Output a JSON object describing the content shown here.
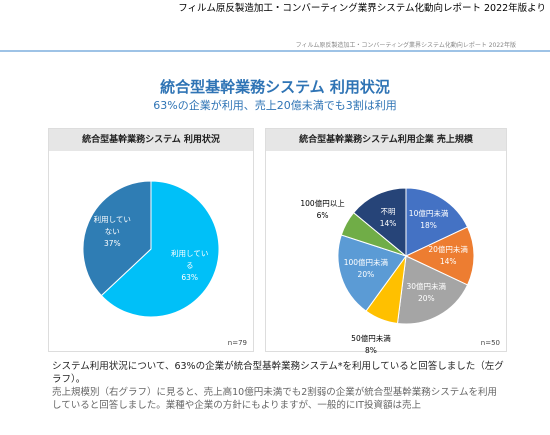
{
  "header": {
    "source": "フィルム原反製造加工・コンバーティング業界システム化動向レポート 2022年版より",
    "slide_source": "フィルム原反製造加工・コンバーティング業界システム化動向レポート 2022年版",
    "title": "統合型基幹業務システム 利用状況",
    "subtitle": "63%の企業が利用、売上20億未満でも3割は利用"
  },
  "chart_data": [
    {
      "type": "pie",
      "title": "統合型基幹業務システム 利用状況",
      "categories": [
        "利用している",
        "利用していない"
      ],
      "values": [
        63,
        37
      ],
      "value_labels": [
        "63%",
        "37%"
      ],
      "colors": [
        "#00c0f8",
        "#2f7db4"
      ],
      "note": "n=79"
    },
    {
      "type": "pie",
      "title": "統合型基幹業務システム利用企業 売上規模",
      "categories": [
        "10億円未満",
        "20億円未満",
        "30億円未満",
        "50億円未満",
        "100億円未満",
        "100億円以上",
        "不明"
      ],
      "values": [
        18,
        14,
        20,
        8,
        20,
        6,
        14
      ],
      "value_labels": [
        "18%",
        "14%",
        "20%",
        "8%",
        "20%",
        "6%",
        "14%"
      ],
      "colors": [
        "#4472c4",
        "#ed7d31",
        "#a5a5a5",
        "#ffc000",
        "#5b9bd5",
        "#70ad47",
        "#264478"
      ],
      "note": "n=50"
    }
  ],
  "body": {
    "paragraphs": [
      "システム利用状況について、63%の企業が統合型基幹業務システム*を利用していると回答しました（左グラフ）。",
      "売上規模別（右グラフ）に見ると、売上高10億円未満でも2割弱の企業が統合型基幹業務システムを利用していると回答しました。業種や企業の方針にもよりますが、一般的にIT投資額は売上"
    ]
  }
}
